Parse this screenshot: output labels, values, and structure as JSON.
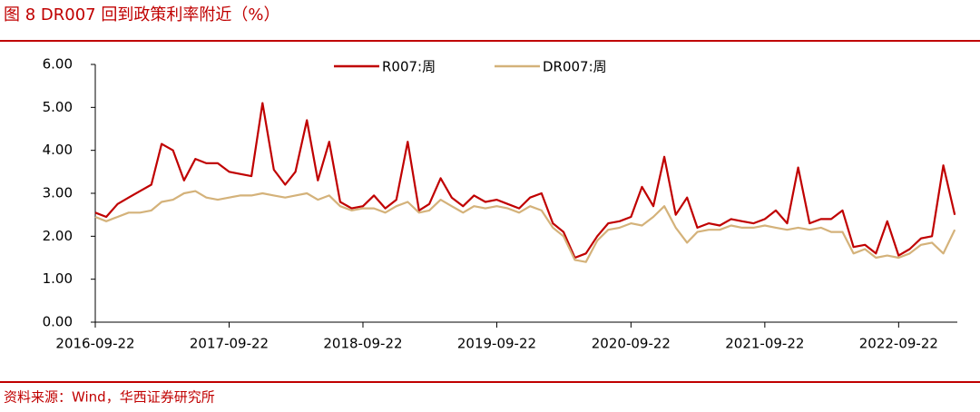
{
  "chart_data": {
    "type": "line",
    "title": "图 8 DR007 回到政策利率附近（%）",
    "source": "资料来源：Wind，华西证券研究所",
    "x": [
      "2016-09-22",
      "2016-10-22",
      "2016-11-22",
      "2016-12-22",
      "2017-01-22",
      "2017-02-22",
      "2017-03-22",
      "2017-04-22",
      "2017-05-22",
      "2017-06-22",
      "2017-07-22",
      "2017-08-22",
      "2017-09-22",
      "2017-10-22",
      "2017-11-22",
      "2017-12-22",
      "2018-01-22",
      "2018-02-22",
      "2018-03-22",
      "2018-04-22",
      "2018-05-22",
      "2018-06-22",
      "2018-07-22",
      "2018-08-22",
      "2018-09-22",
      "2018-10-22",
      "2018-11-22",
      "2018-12-22",
      "2019-01-22",
      "2019-02-22",
      "2019-03-22",
      "2019-04-22",
      "2019-05-22",
      "2019-06-22",
      "2019-07-22",
      "2019-08-22",
      "2019-09-22",
      "2019-10-22",
      "2019-11-22",
      "2019-12-22",
      "2020-01-22",
      "2020-02-22",
      "2020-03-22",
      "2020-04-22",
      "2020-05-22",
      "2020-06-22",
      "2020-07-22",
      "2020-08-22",
      "2020-09-22",
      "2020-10-22",
      "2020-11-22",
      "2020-12-22",
      "2021-01-22",
      "2021-02-22",
      "2021-03-22",
      "2021-04-22",
      "2021-05-22",
      "2021-06-22",
      "2021-07-22",
      "2021-08-22",
      "2021-09-22",
      "2021-10-22",
      "2021-11-22",
      "2021-12-22",
      "2022-01-22",
      "2022-02-22",
      "2022-03-22",
      "2022-04-22",
      "2022-05-22",
      "2022-06-22",
      "2022-07-22",
      "2022-08-22",
      "2022-09-22",
      "2022-10-22",
      "2022-11-22",
      "2022-12-22",
      "2023-01-22",
      "2023-02-22"
    ],
    "series": [
      {
        "name": "R007:周",
        "color": "#c00000",
        "values": [
          2.55,
          2.45,
          2.75,
          2.9,
          3.05,
          3.2,
          4.15,
          4.0,
          3.3,
          3.8,
          3.7,
          3.7,
          3.5,
          3.45,
          3.4,
          5.1,
          3.55,
          3.2,
          3.5,
          4.7,
          3.3,
          4.2,
          2.8,
          2.65,
          2.7,
          2.95,
          2.65,
          2.85,
          4.2,
          2.6,
          2.75,
          3.35,
          2.9,
          2.7,
          2.95,
          2.8,
          2.85,
          2.75,
          2.65,
          2.9,
          3.0,
          2.3,
          2.1,
          1.5,
          1.6,
          2.0,
          2.3,
          2.35,
          2.45,
          3.15,
          2.7,
          3.85,
          2.5,
          2.9,
          2.2,
          2.3,
          2.25,
          2.4,
          2.35,
          2.3,
          2.4,
          2.6,
          2.3,
          3.6,
          2.3,
          2.4,
          2.4,
          2.6,
          1.75,
          1.8,
          1.6,
          2.35,
          1.55,
          1.7,
          1.95,
          2.0,
          3.65,
          2.5
        ]
      },
      {
        "name": "DR007:周",
        "color": "#d4b27a",
        "values": [
          2.45,
          2.35,
          2.45,
          2.55,
          2.55,
          2.6,
          2.8,
          2.85,
          3.0,
          3.05,
          2.9,
          2.85,
          2.9,
          2.95,
          2.95,
          3.0,
          2.95,
          2.9,
          2.95,
          3.0,
          2.85,
          2.95,
          2.7,
          2.6,
          2.65,
          2.65,
          2.55,
          2.7,
          2.8,
          2.55,
          2.6,
          2.85,
          2.7,
          2.55,
          2.7,
          2.65,
          2.7,
          2.65,
          2.55,
          2.7,
          2.6,
          2.2,
          2.0,
          1.45,
          1.4,
          1.9,
          2.15,
          2.2,
          2.3,
          2.25,
          2.45,
          2.7,
          2.2,
          1.85,
          2.1,
          2.15,
          2.15,
          2.25,
          2.2,
          2.2,
          2.25,
          2.2,
          2.15,
          2.2,
          2.15,
          2.2,
          2.1,
          2.1,
          1.6,
          1.7,
          1.5,
          1.55,
          1.5,
          1.6,
          1.8,
          1.85,
          1.6,
          2.15
        ]
      }
    ],
    "xlim": [
      "2016-09-22",
      "2023-03-01"
    ],
    "xticks": [
      "2016-09-22",
      "2017-09-22",
      "2018-09-22",
      "2019-09-22",
      "2020-09-22",
      "2021-09-22",
      "2022-09-22"
    ],
    "ylim": [
      0,
      6
    ],
    "yticks": [
      {
        "value": 0,
        "label": "0.00"
      },
      {
        "value": 1,
        "label": "1.00"
      },
      {
        "value": 2,
        "label": "2.00"
      },
      {
        "value": 3,
        "label": "3.00"
      },
      {
        "value": 4,
        "label": "4.00"
      },
      {
        "value": 5,
        "label": "5.00"
      },
      {
        "value": 6,
        "label": "6.00"
      }
    ],
    "legend": "top"
  }
}
